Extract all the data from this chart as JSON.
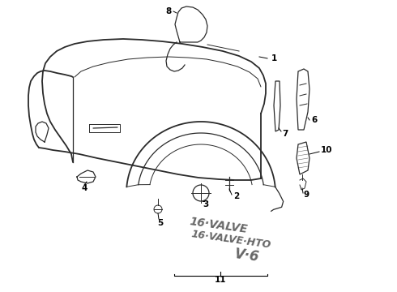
{
  "background_color": "#ffffff",
  "line_color": "#2a2a2a",
  "label_color": "#000000",
  "fig_width": 4.9,
  "fig_height": 3.6,
  "dpi": 100,
  "badge_color": "#666666"
}
